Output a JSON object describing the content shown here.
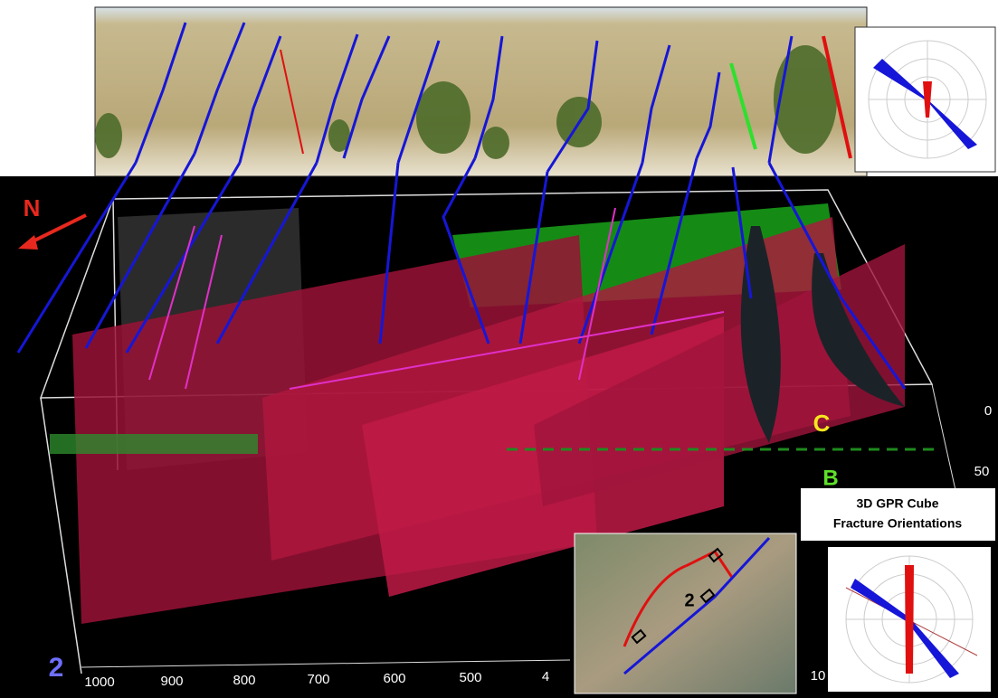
{
  "labels": {
    "north": "N",
    "horizon_c": "C",
    "horizon_b": "B",
    "panel_number": "2"
  },
  "legend": {
    "line1": "3D GPR Cube",
    "line2": "Fracture Orientations"
  },
  "x_axis": {
    "ticks": [
      1000,
      900,
      800,
      700,
      600,
      500,
      4
    ]
  },
  "depth_axis": {
    "ticks": [
      0,
      50
    ]
  },
  "side_axis": {
    "ticks": [
      10
    ]
  },
  "map_inset": {
    "label": "2"
  }
}
